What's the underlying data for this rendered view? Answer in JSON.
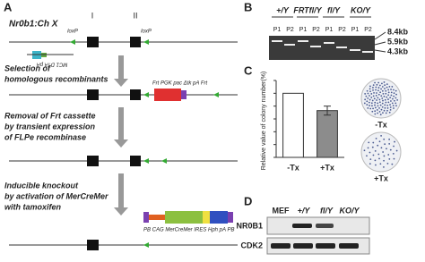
{
  "panel_a": {
    "letter": "A",
    "locus": "Nr0b1:Ch X",
    "exon_labels": [
      "I",
      "II"
    ],
    "loxp": [
      "loxP",
      "loxP"
    ],
    "dta": "MC1 DTA pA",
    "step1": [
      "Selection of",
      "homologous recombinants"
    ],
    "cassette": "Frt PGK pac Δtk pA Frt",
    "step2": [
      "Removal of Frt cassette",
      "by transient expression",
      "of FLPe recombinase"
    ],
    "step3": [
      "Inducible knockout",
      "by activation of MerCreMer",
      "with tamoxifen"
    ],
    "transgene": "PB  CAG  MerCreMer  IRES  Hph  pA  PB"
  },
  "panel_b": {
    "letter": "B",
    "genotypes": [
      "+/Y",
      "FRTfl/Y",
      "fl/Y",
      "KO/Y"
    ],
    "primers": [
      "P1",
      "P2",
      "P1",
      "P2",
      "P1",
      "P2",
      "P1",
      "P2"
    ],
    "sizes": [
      "8.4kb",
      "5.9kb",
      "4.3kb"
    ]
  },
  "chart_data": {
    "type": "bar",
    "letter": "C",
    "ylabel": "Relative value of colony number(%)",
    "categories": [
      "-Tx",
      "+Tx"
    ],
    "values": [
      100,
      73
    ],
    "errors": [
      null,
      7
    ],
    "colors": [
      "#ffffff",
      "#8c8c8c"
    ],
    "ylim": [
      0,
      120
    ],
    "yticks": [
      0,
      20,
      40,
      60,
      80,
      100,
      120
    ],
    "plate_labels": [
      "-Tx",
      "+Tx"
    ]
  },
  "panel_d": {
    "letter": "D",
    "lanes": [
      "MEF",
      "+/Y",
      "fl/Y",
      "KO/Y"
    ],
    "proteins": [
      "NR0B1",
      "CDK2"
    ]
  }
}
